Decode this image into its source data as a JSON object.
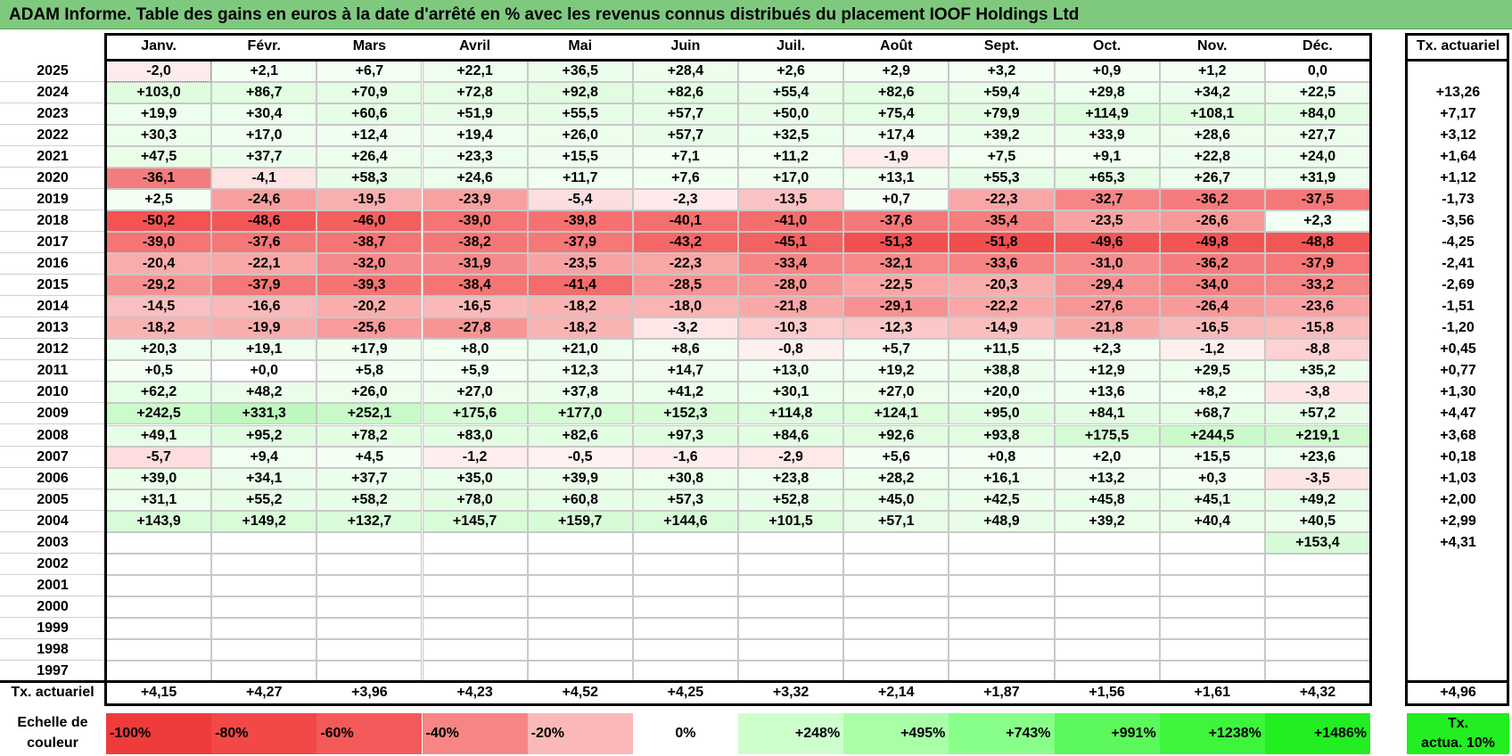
{
  "title": "ADAM Informe. Table des gains en euros à la date d'arrêté en % avec les revenus connus distribués du placement IOOF Holdings Ltd",
  "months": [
    "Janv.",
    "Févr.",
    "Mars",
    "Avril",
    "Mai",
    "Juin",
    "Juil.",
    "Août",
    "Sept.",
    "Oct.",
    "Nov.",
    "Déc."
  ],
  "annual_header": "Tx. actuariel",
  "rows": [
    {
      "year": "2025",
      "values": [
        "-2,0",
        "+2,1",
        "+6,7",
        "+22,1",
        "+36,5",
        "+28,4",
        "+2,6",
        "+2,9",
        "+3,2",
        "+0,9",
        "+1,2",
        "0,0"
      ],
      "annual": ""
    },
    {
      "year": "2024",
      "values": [
        "+103,0",
        "+86,7",
        "+70,9",
        "+72,8",
        "+92,8",
        "+82,6",
        "+55,4",
        "+82,6",
        "+59,4",
        "+29,8",
        "+34,2",
        "+22,5"
      ],
      "annual": "+13,26"
    },
    {
      "year": "2023",
      "values": [
        "+19,9",
        "+30,4",
        "+60,6",
        "+51,9",
        "+55,5",
        "+57,7",
        "+50,0",
        "+75,4",
        "+79,9",
        "+114,9",
        "+108,1",
        "+84,0"
      ],
      "annual": "+7,17"
    },
    {
      "year": "2022",
      "values": [
        "+30,3",
        "+17,0",
        "+12,4",
        "+19,4",
        "+26,0",
        "+57,7",
        "+32,5",
        "+17,4",
        "+39,2",
        "+33,9",
        "+28,6",
        "+27,7"
      ],
      "annual": "+3,12"
    },
    {
      "year": "2021",
      "values": [
        "+47,5",
        "+37,7",
        "+26,4",
        "+23,3",
        "+15,5",
        "+7,1",
        "+11,2",
        "-1,9",
        "+7,5",
        "+9,1",
        "+22,8",
        "+24,0"
      ],
      "annual": "+1,64"
    },
    {
      "year": "2020",
      "values": [
        "-36,1",
        "-4,1",
        "+58,3",
        "+24,6",
        "+11,7",
        "+7,6",
        "+17,0",
        "+13,1",
        "+55,3",
        "+65,3",
        "+26,7",
        "+31,9"
      ],
      "annual": "+1,12"
    },
    {
      "year": "2019",
      "values": [
        "+2,5",
        "-24,6",
        "-19,5",
        "-23,9",
        "-5,4",
        "-2,3",
        "-13,5",
        "+0,7",
        "-22,3",
        "-32,7",
        "-36,2",
        "-37,5"
      ],
      "annual": "-1,73"
    },
    {
      "year": "2018",
      "values": [
        "-50,2",
        "-48,6",
        "-46,0",
        "-39,0",
        "-39,8",
        "-40,1",
        "-41,0",
        "-37,6",
        "-35,4",
        "-23,5",
        "-26,6",
        "+2,3"
      ],
      "annual": "-3,56"
    },
    {
      "year": "2017",
      "values": [
        "-39,0",
        "-37,6",
        "-38,7",
        "-38,2",
        "-37,9",
        "-43,2",
        "-45,1",
        "-51,3",
        "-51,8",
        "-49,6",
        "-49,8",
        "-48,8"
      ],
      "annual": "-4,25"
    },
    {
      "year": "2016",
      "values": [
        "-20,4",
        "-22,1",
        "-32,0",
        "-31,9",
        "-23,5",
        "-22,3",
        "-33,4",
        "-32,1",
        "-33,6",
        "-31,0",
        "-36,2",
        "-37,9"
      ],
      "annual": "-2,41"
    },
    {
      "year": "2015",
      "values": [
        "-29,2",
        "-37,9",
        "-39,3",
        "-38,4",
        "-41,4",
        "-28,5",
        "-28,0",
        "-22,5",
        "-20,3",
        "-29,4",
        "-34,0",
        "-33,2"
      ],
      "annual": "-2,69"
    },
    {
      "year": "2014",
      "values": [
        "-14,5",
        "-16,6",
        "-20,2",
        "-16,5",
        "-18,2",
        "-18,0",
        "-21,8",
        "-29,1",
        "-22,2",
        "-27,6",
        "-26,4",
        "-23,6"
      ],
      "annual": "-1,51"
    },
    {
      "year": "2013",
      "values": [
        "-18,2",
        "-19,9",
        "-25,6",
        "-27,8",
        "-18,2",
        "-3,2",
        "-10,3",
        "-12,3",
        "-14,9",
        "-21,8",
        "-16,5",
        "-15,8"
      ],
      "annual": "-1,20"
    },
    {
      "year": "2012",
      "values": [
        "+20,3",
        "+19,1",
        "+17,9",
        "+8,0",
        "+21,0",
        "+8,6",
        "-0,8",
        "+5,7",
        "+11,5",
        "+2,3",
        "-1,2",
        "-8,8"
      ],
      "annual": "+0,45"
    },
    {
      "year": "2011",
      "values": [
        "+0,5",
        "+0,0",
        "+5,8",
        "+5,9",
        "+12,3",
        "+14,7",
        "+13,0",
        "+19,2",
        "+38,8",
        "+12,9",
        "+29,5",
        "+35,2"
      ],
      "annual": "+0,77"
    },
    {
      "year": "2010",
      "values": [
        "+62,2",
        "+48,2",
        "+26,0",
        "+27,0",
        "+37,8",
        "+41,2",
        "+30,1",
        "+27,0",
        "+20,0",
        "+13,6",
        "+8,2",
        "-3,8"
      ],
      "annual": "+1,30"
    },
    {
      "year": "2009",
      "values": [
        "+242,5",
        "+331,3",
        "+252,1",
        "+175,6",
        "+177,0",
        "+152,3",
        "+114,8",
        "+124,1",
        "+95,0",
        "+84,1",
        "+68,7",
        "+57,2"
      ],
      "annual": "+4,47"
    },
    {
      "year": "2008",
      "values": [
        "+49,1",
        "+95,2",
        "+78,2",
        "+83,0",
        "+82,6",
        "+97,3",
        "+84,6",
        "+92,6",
        "+93,8",
        "+175,5",
        "+244,5",
        "+219,1"
      ],
      "annual": "+3,68"
    },
    {
      "year": "2007",
      "values": [
        "-5,7",
        "+9,4",
        "+4,5",
        "-1,2",
        "-0,5",
        "-1,6",
        "-2,9",
        "+5,6",
        "+0,8",
        "+2,0",
        "+15,5",
        "+23,6"
      ],
      "annual": "+0,18"
    },
    {
      "year": "2006",
      "values": [
        "+39,0",
        "+34,1",
        "+37,7",
        "+35,0",
        "+39,9",
        "+30,8",
        "+23,8",
        "+28,2",
        "+16,1",
        "+13,2",
        "+0,3",
        "-3,5"
      ],
      "annual": "+1,03"
    },
    {
      "year": "2005",
      "values": [
        "+31,1",
        "+55,2",
        "+58,2",
        "+78,0",
        "+60,8",
        "+57,3",
        "+52,8",
        "+45,0",
        "+42,5",
        "+45,8",
        "+45,1",
        "+49,2"
      ],
      "annual": "+2,00"
    },
    {
      "year": "2004",
      "values": [
        "+143,9",
        "+149,2",
        "+132,7",
        "+145,7",
        "+159,7",
        "+144,6",
        "+101,5",
        "+57,1",
        "+48,9",
        "+39,2",
        "+40,4",
        "+40,5"
      ],
      "annual": "+2,99"
    },
    {
      "year": "2003",
      "values": [
        "",
        "",
        "",
        "",
        "",
        "",
        "",
        "",
        "",
        "",
        "",
        "+153,4"
      ],
      "annual": "+4,31"
    },
    {
      "year": "2002",
      "values": [
        "",
        "",
        "",
        "",
        "",
        "",
        "",
        "",
        "",
        "",
        "",
        ""
      ],
      "annual": ""
    },
    {
      "year": "2001",
      "values": [
        "",
        "",
        "",
        "",
        "",
        "",
        "",
        "",
        "",
        "",
        "",
        ""
      ],
      "annual": ""
    },
    {
      "year": "2000",
      "values": [
        "",
        "",
        "",
        "",
        "",
        "",
        "",
        "",
        "",
        "",
        "",
        ""
      ],
      "annual": ""
    },
    {
      "year": "1999",
      "values": [
        "",
        "",
        "",
        "",
        "",
        "",
        "",
        "",
        "",
        "",
        "",
        ""
      ],
      "annual": ""
    },
    {
      "year": "1998",
      "values": [
        "",
        "",
        "",
        "",
        "",
        "",
        "",
        "",
        "",
        "",
        "",
        ""
      ],
      "annual": ""
    },
    {
      "year": "1997",
      "values": [
        "",
        "",
        "",
        "",
        "",
        "",
        "",
        "",
        "",
        "",
        "",
        ""
      ],
      "annual": ""
    }
  ],
  "footer": {
    "label": "Tx. actuariel",
    "values": [
      "+4,15",
      "+4,27",
      "+3,96",
      "+4,23",
      "+4,52",
      "+4,25",
      "+3,32",
      "+2,14",
      "+1,87",
      "+1,56",
      "+1,61",
      "+4,32"
    ],
    "annual": "+4,96"
  },
  "legend": {
    "label_line1": "Echelle de",
    "label_line2": "couleur",
    "items": [
      {
        "text": "-100%",
        "color": "#ef3b3b"
      },
      {
        "text": "-80%",
        "color": "#f24848"
      },
      {
        "text": "-60%",
        "color": "#f55a5a"
      },
      {
        "text": "-40%",
        "color": "#f88585"
      },
      {
        "text": "-20%",
        "color": "#fbb8b8"
      },
      {
        "text": "0%",
        "color": "#ffffff"
      },
      {
        "text": "+248%",
        "color": "#ccffcc"
      },
      {
        "text": "+495%",
        "color": "#a8ffa8"
      },
      {
        "text": "+743%",
        "color": "#88ff88"
      },
      {
        "text": "+991%",
        "color": "#5cf85c"
      },
      {
        "text": "+1238%",
        "color": "#3ef53e"
      },
      {
        "text": "+1486%",
        "color": "#22ee22"
      }
    ],
    "annual_line1": "Tx.",
    "annual_line2": "actua. 10%",
    "annual_color": "#22ee22"
  }
}
